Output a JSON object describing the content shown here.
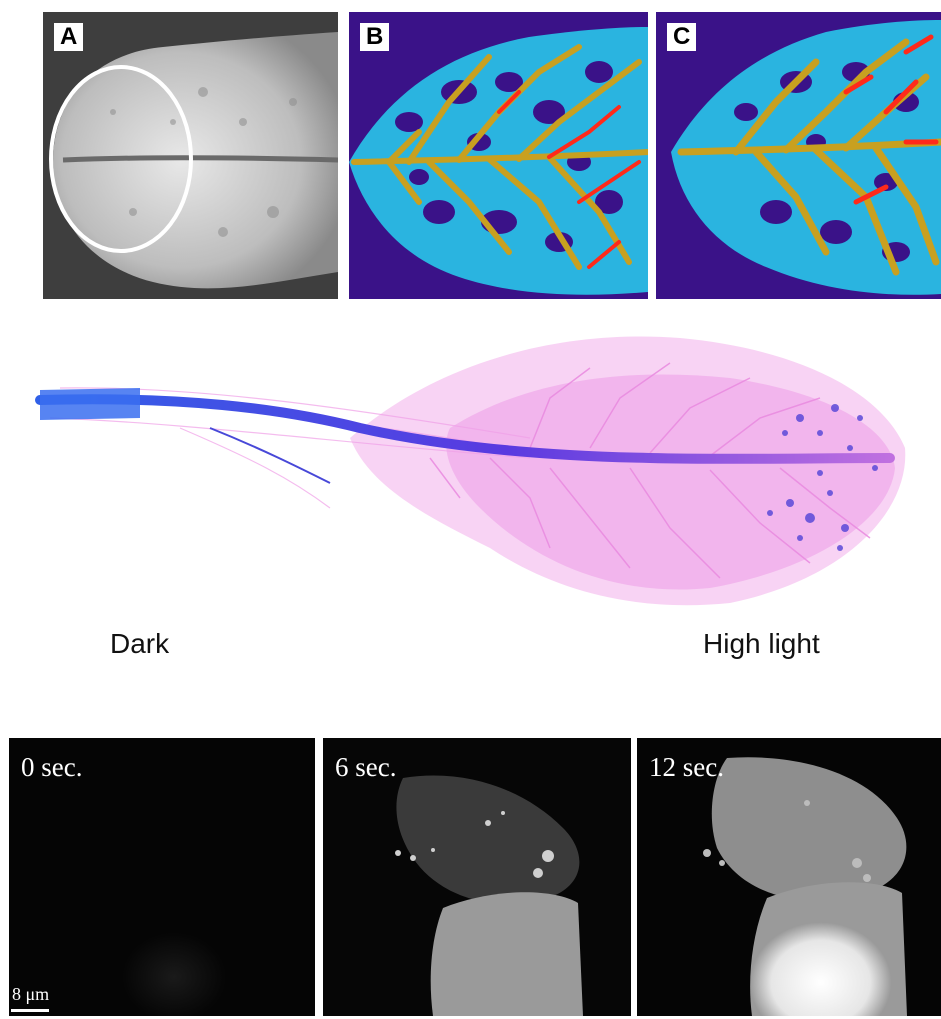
{
  "top_panels": {
    "a_label": "A",
    "b_label": "B",
    "c_label": "C"
  },
  "gradient": {
    "left_label": "Dark",
    "right_label": "High light"
  },
  "timelapse": {
    "frames": [
      "0 sec.",
      "6 sec.",
      "12 sec."
    ],
    "scale_label": "8 μm"
  },
  "colors": {
    "heatmap_background": "#3a1288",
    "heatmap_low": "#22b7e0",
    "heatmap_mid": "#c8a020",
    "heatmap_high": "#ff2a1a",
    "root_pink": "#f0a0e8",
    "root_blue": "#3a3ae0"
  }
}
